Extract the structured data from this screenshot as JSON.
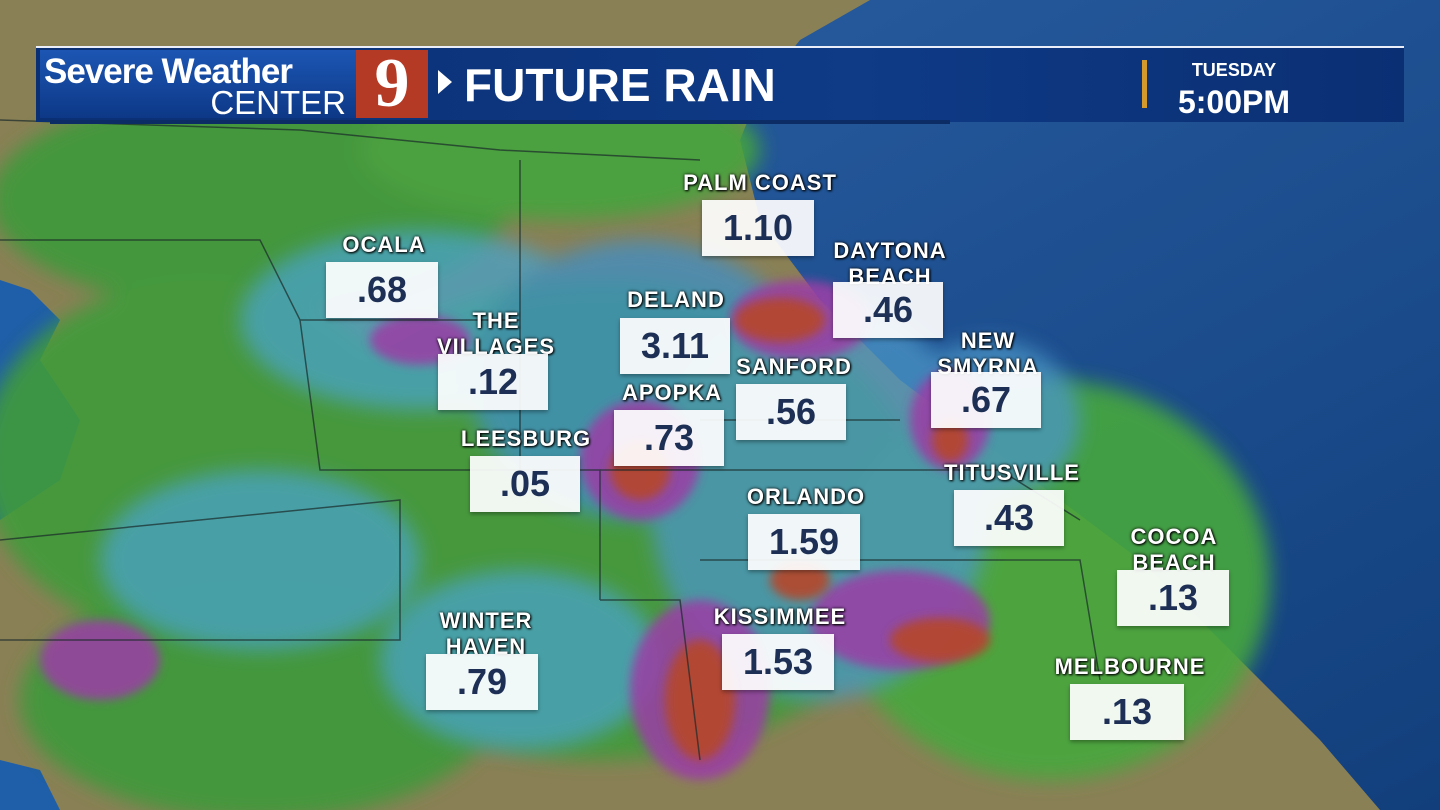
{
  "header": {
    "brand_line1": "Severe Weather",
    "brand_line2": "CENTER",
    "logo_text": "9",
    "title": "FUTURE RAIN",
    "day": "TUESDAY",
    "time": "5:00PM",
    "accent_color": "#d59a2c",
    "logo_color": "#b53a26"
  },
  "locations": [
    {
      "name": "PALM COAST",
      "value": "1.10"
    },
    {
      "name": "OCALA",
      "value": ".68"
    },
    {
      "name": "DAYTONA BEACH",
      "value": ".46"
    },
    {
      "name": "DELAND",
      "value": "3.11"
    },
    {
      "name": "THE VILLAGES",
      "value": ".12"
    },
    {
      "name": "SANFORD",
      "value": ".56"
    },
    {
      "name": "NEW SMYRNA",
      "value": ".67"
    },
    {
      "name": "APOPKA",
      "value": ".73"
    },
    {
      "name": "LEESBURG",
      "value": ".05"
    },
    {
      "name": "TITUSVILLE",
      "value": ".43"
    },
    {
      "name": "ORLANDO",
      "value": "1.59"
    },
    {
      "name": "COCOA BEACH",
      "value": ".13"
    },
    {
      "name": "WINTER HAVEN",
      "value": ".79"
    },
    {
      "name": "KISSIMMEE",
      "value": "1.53"
    },
    {
      "name": "MELBOURNE",
      "value": ".13"
    }
  ]
}
